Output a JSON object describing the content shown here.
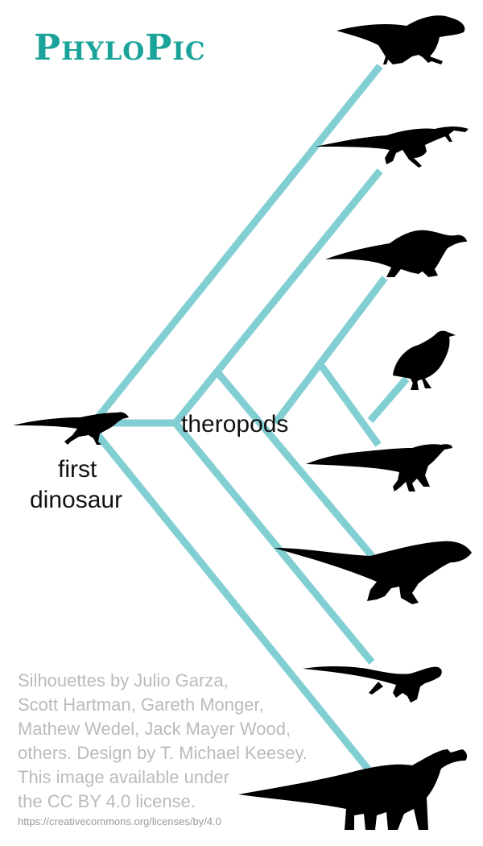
{
  "logo": {
    "text": "PhyloPic"
  },
  "labels": {
    "first_line1": "first",
    "first_line2": "dinosaur",
    "theropods": "theropods"
  },
  "credits": {
    "lines": [
      "Silhouettes by Julio Garza,",
      "Scott Hartman, Gareth Monger,",
      "Mathew Wedel, Jack Mayer Wood,",
      "others. Design by T. Michael Keesey.",
      "This image available under",
      "the CC BY 4.0 license."
    ],
    "url": "https://creativecommons.org/licenses/by/4.0"
  },
  "colors": {
    "branch": "#82cfd3",
    "logo": "#1aa39a",
    "silhouette": "#000000",
    "credit_text": "#bbbbbb"
  },
  "silhouettes": [
    "hadrosaur-silhouette",
    "spinosaur-silhouette",
    "therizinosaur-silhouette",
    "bird-silhouette",
    "dromaeosaur-silhouette",
    "tyrannosaur-silhouette",
    "small-theropod-silhouette",
    "sauropod-silhouette",
    "early-dinosaur-silhouette"
  ]
}
